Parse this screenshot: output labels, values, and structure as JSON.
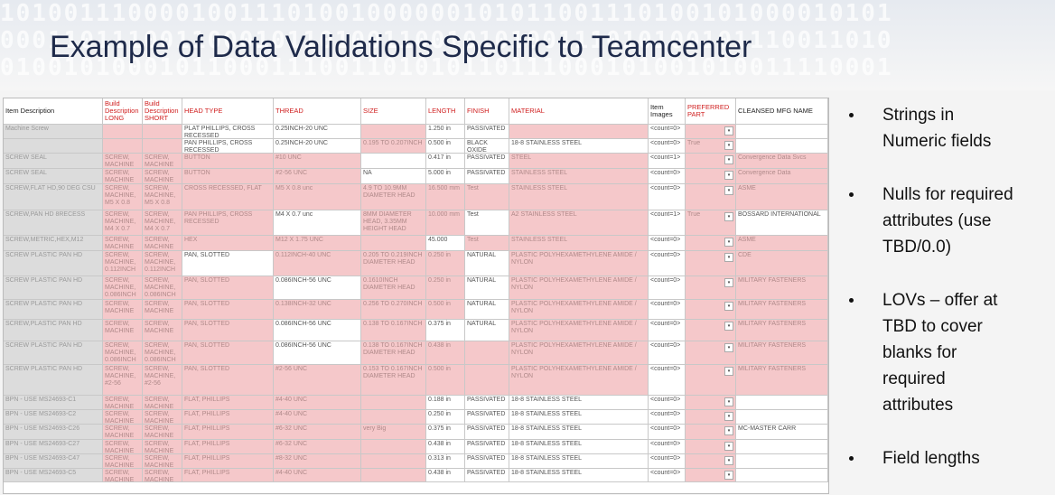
{
  "header": {
    "binary": [
      "10100111000010011101001000000101011001110100101000010101",
      "00011011100110001011010011001010100111010100101110011010",
      "01001010001011000111001101010110111000101001010011110001"
    ],
    "title": "Example of Data Validations Specific to Teamcenter"
  },
  "table": {
    "columns": [
      "Item Description",
      "Build Description LONG",
      "Build Description SHORT",
      "HEAD TYPE",
      "THREAD",
      "SIZE",
      "LENGTH",
      "FINISH",
      "MATERIAL",
      "Item Images",
      "PREFERRED PART",
      "CLEANSED MFG NAME"
    ],
    "rows": [
      [
        "Machine Screw",
        "",
        "",
        "PLAT PHILLIPS, CROSS RECESSED",
        "0.25INCH-20 UNC",
        "",
        "1.250 in",
        "PASSIVATED",
        "",
        "<count=0>",
        "",
        ""
      ],
      [
        "",
        "",
        "",
        "PAN PHILLIPS, CROSS RECESSED",
        "0.25INCH-20 UNC",
        "0.195 TO 0.207INCH",
        "0.500 in",
        "BLACK OXIDE",
        "18-8 STAINLESS STEEL",
        "<count=0>",
        "True",
        ""
      ],
      [
        "SCREW SEAL",
        "SCREW, MACHINE",
        "SCREW, MACHINE",
        "BUTTON",
        "#10 UNC",
        "",
        "0.417 in",
        "PASSIVATED",
        "STEEL",
        "<count=1>",
        "",
        "Convergence Data Svcs"
      ],
      [
        "SCREW SEAL",
        "SCREW, MACHINE",
        "SCREW, MACHINE",
        "BUTTON",
        "#2-56 UNC",
        "NA",
        "5.000 in",
        "PASSIVATED",
        "STAINLESS STEEL",
        "<count=0>",
        "",
        "Convergence Data"
      ],
      [
        "SCREW,FLAT HD,90 DEG CSU",
        "SCREW, MACHINE, M5 X 0.8",
        "SCREW, MACHINE, M5 X 0.8",
        "CROSS RECESSED, FLAT",
        "M5 X 0.8 unc",
        "4.9 TO 10.9MM DIAMETER HEAD",
        "16.500 mm",
        "Test",
        "STAINLESS STEEL",
        "<count=0>",
        "",
        "ASME"
      ],
      [
        "SCREW,PAN HD 8RECESS",
        "SCREW, MACHINE, M4 X 0.7",
        "SCREW, MACHINE, M4 X 0.7",
        "PAN PHILLIPS, CROSS RECESSED",
        "M4 X 0.7 unc",
        "8MM DIAMETER HEAD, 3.35MM HEIGHT HEAD",
        "10.000 mm",
        "Test",
        "A2 STAINLESS STEEL",
        "<count=1>",
        "True",
        "BOSSARD INTERNATIONAL"
      ],
      [
        "SCREW,METRIC,HEX,M12",
        "SCREW, MACHINE",
        "SCREW, MACHINE",
        "HEX",
        "M12 X 1.75 UNC",
        "",
        "45.000",
        "Test",
        "STAINLESS STEEL",
        "<count=0>",
        "",
        "ASME"
      ],
      [
        "SCREW PLASTIC PAN HD",
        "SCREW, MACHINE, 0.112INCH",
        "SCREW, MACHINE, 0.112INCH",
        "PAN, SLOTTED",
        "0.112INCH-40 UNC",
        "0.205 TO 0.219INCH DIAMETER HEAD",
        "0.250 in",
        "NATURAL",
        "PLASTIC POLYHEXAMETHYLENE AMIDE / NYLON",
        "<count=0>",
        "",
        "CDE"
      ],
      [
        "SCREW PLASTIC PAN HD",
        "SCREW, MACHINE, 0.086INCH",
        "SCREW, MACHINE, 0.086INCH",
        "PAN, SLOTTED",
        "0.086INCH-56 UNC",
        "0.1610INCH DIAMETER HEAD",
        "0.250 in",
        "NATURAL",
        "PLASTIC POLYHEXAMETHYLENE AMIDE / NYLON",
        "<count=0>",
        "",
        "MILITARY FASTENERS"
      ],
      [
        "SCREW PLASTIC PAN HD",
        "SCREW, MACHINE",
        "SCREW, MACHINE",
        "PAN, SLOTTED",
        "0.138INCH-32 UNC",
        "0.256 TO 0.270INCH",
        "0.500 in",
        "NATURAL",
        "PLASTIC POLYHEXAMETHYLENE AMIDE / NYLON",
        "<count=0>",
        "",
        "MILITARY FASTENERS"
      ],
      [
        "SCREW,PLASTIC PAN HD",
        "SCREW, MACHINE",
        "SCREW, MACHINE",
        "PAN, SLOTTED",
        "0.086INCH-56 UNC",
        "0.138 TO 0.167INCH",
        "0.375 in",
        "NATURAL",
        "PLASTIC POLYHEXAMETHYLENE AMIDE / NYLON",
        "<count=0>",
        "",
        "MILITARY FASTENERS"
      ],
      [
        "SCREW PLASTIC PAN HD",
        "SCREW, MACHINE, 0.086INCH",
        "SCREW, MACHINE, 0.086INCH",
        "PAN, SLOTTED",
        "0.086INCH-56 UNC",
        "0.138 TO 0.167INCH DIAMETER HEAD",
        "0.438 in",
        "",
        "PLASTIC POLYHEXAMETHYLENE AMIDE / NYLON",
        "<count=0>",
        "",
        "MILITARY FASTENERS"
      ],
      [
        "SCREW PLASTIC PAN HD",
        "SCREW, MACHINE, #2-56",
        "SCREW, MACHINE, #2-56",
        "PAN, SLOTTED",
        "#2-56 UNC",
        "0.153 TO 0.167INCH DIAMETER HEAD",
        "0.500 in",
        "",
        "PLASTIC POLYHEXAMETHYLENE AMIDE / NYLON",
        "<count=0>",
        "",
        "MILITARY FASTENERS"
      ],
      [
        "BPN - USE MS24693-C1",
        "SCREW, MACHINE",
        "SCREW, MACHINE",
        "FLAT, PHILLIPS",
        "#4-40 UNC",
        "",
        "0.188 in",
        "PASSIVATED",
        "18-8 STAINLESS STEEL",
        "<count=0>",
        "",
        ""
      ],
      [
        "BPN - USE MS24693-C2",
        "SCREW, MACHINE",
        "SCREW, MACHINE",
        "FLAT, PHILLIPS",
        "#4-40 UNC",
        "",
        "0.250 in",
        "PASSIVATED",
        "18-8 STAINLESS STEEL",
        "<count=0>",
        "",
        ""
      ],
      [
        "BPN - USE MS24693-C26",
        "SCREW, MACHINE",
        "SCREW, MACHINE",
        "FLAT, PHILLIPS",
        "#6-32 UNC",
        "very Big",
        "0.375 in",
        "PASSIVATED",
        "18-8 STAINLESS STEEL",
        "<count=0>",
        "",
        "MC-MASTER CARR"
      ],
      [
        "BPN - USE MS24693-C27",
        "SCREW, MACHINE",
        "SCREW, MACHINE",
        "FLAT, PHILLIPS",
        "#6-32 UNC",
        "",
        "0.438 in",
        "PASSIVATED",
        "18-8 STAINLESS STEEL",
        "<count=0>",
        "",
        ""
      ],
      [
        "BPN - USE MS24693-C47",
        "SCREW, MACHINE",
        "SCREW, MACHINE",
        "FLAT, PHILLIPS",
        "#8-32 UNC",
        "",
        "0.313 in",
        "PASSIVATED",
        "18-8 STAINLESS STEEL",
        "<count=0>",
        "",
        ""
      ],
      [
        "BPN - USE MS24693-C5",
        "SCREW, MACHINE",
        "SCREW, MACHINE",
        "FLAT, PHILLIPS",
        "#4-40 UNC",
        "",
        "0.438 in",
        "PASSIVATED",
        "18-8 STAINLESS STEEL",
        "<count=0>",
        "",
        ""
      ]
    ]
  },
  "bullets": [
    [
      "Strings in",
      "Numeric fields"
    ],
    [
      "Nulls for required",
      "attributes (use",
      "TBD/0.0)"
    ],
    [
      "LOVs – offer at",
      "TBD to cover",
      "blanks for",
      "required",
      "attributes"
    ],
    [
      "Field lengths"
    ]
  ]
}
